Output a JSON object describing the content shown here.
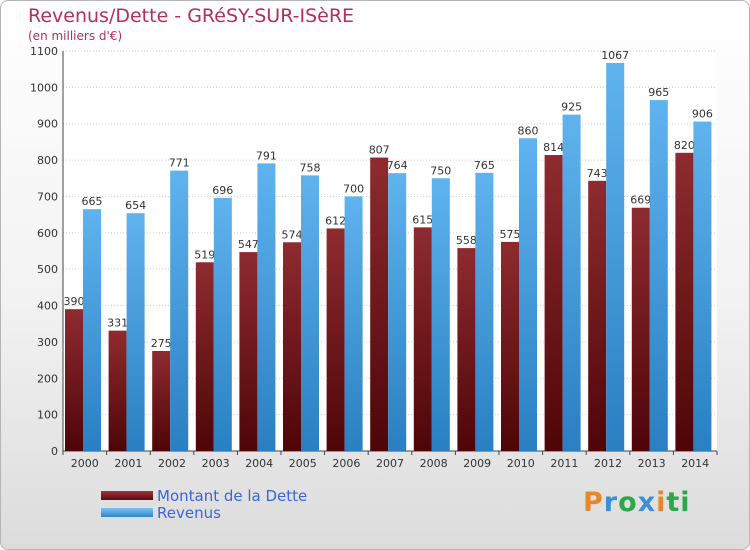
{
  "chart_data": {
    "type": "bar",
    "title": "Revenus/Dette - GRéSY-SUR-ISèRE",
    "subtitle": "(en milliers d'€)",
    "categories": [
      "2000",
      "2001",
      "2002",
      "2003",
      "2004",
      "2005",
      "2006",
      "2007",
      "2008",
      "2009",
      "2010",
      "2011",
      "2012",
      "2013",
      "2014"
    ],
    "series": [
      {
        "name": "Montant de la Dette",
        "color": "#7a1a1e",
        "values": [
          390,
          331,
          275,
          519,
          547,
          574,
          612,
          807,
          615,
          558,
          575,
          814,
          743,
          669,
          820
        ]
      },
      {
        "name": "Revenus",
        "color": "#4da6e8",
        "values": [
          665,
          654,
          771,
          696,
          791,
          758,
          700,
          764,
          750,
          765,
          860,
          925,
          1067,
          965,
          906
        ]
      }
    ],
    "ylim": [
      0,
      1100
    ],
    "yticks": [
      0,
      100,
      200,
      300,
      400,
      500,
      600,
      700,
      800,
      900,
      1000,
      1100
    ],
    "grid": true,
    "legend_position": "bottom-left"
  },
  "brand": {
    "logo_text": "Proxiti"
  }
}
